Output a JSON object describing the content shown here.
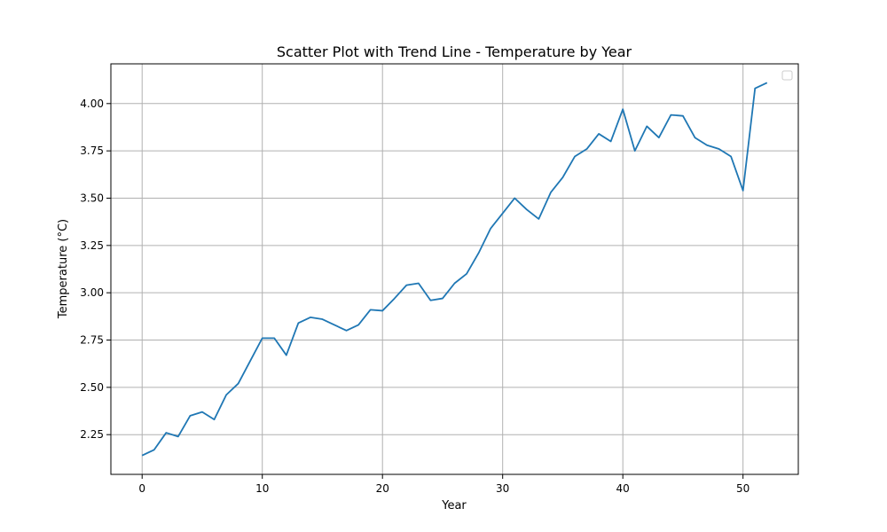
{
  "chart_data": {
    "type": "line",
    "title": "Scatter Plot with Trend Line - Temperature by Year",
    "xlabel": "Year",
    "ylabel": "Temperature (°C)",
    "xlim": [
      -2.6,
      54.6
    ],
    "ylim": [
      2.04,
      4.21
    ],
    "xticks": [
      0,
      10,
      20,
      30,
      40,
      50
    ],
    "yticks": [
      2.25,
      2.5,
      2.75,
      3.0,
      3.25,
      3.5,
      3.75,
      4.0
    ],
    "ytick_labels": [
      "2.25",
      "2.50",
      "2.75",
      "3.00",
      "3.25",
      "3.50",
      "3.75",
      "4.00"
    ],
    "grid": true,
    "legend": "top-right (empty)",
    "colors": {
      "line": "#1f77b4",
      "grid": "#b0b0b0"
    },
    "series": [
      {
        "x": [
          0,
          1,
          2,
          3,
          4,
          5,
          6,
          7,
          8,
          9,
          10,
          11,
          12,
          13,
          14,
          15,
          16,
          17,
          18,
          19,
          20,
          21,
          22,
          23,
          24,
          25,
          26,
          27,
          28,
          29,
          30,
          31,
          32,
          33,
          34,
          35,
          36,
          37,
          38,
          39,
          40,
          41,
          42,
          43,
          44,
          45,
          46,
          47,
          48,
          49,
          50,
          51,
          52
        ],
        "y": [
          2.14,
          2.17,
          2.26,
          2.24,
          2.35,
          2.37,
          2.33,
          2.46,
          2.52,
          2.64,
          2.76,
          2.76,
          2.67,
          2.84,
          2.87,
          2.86,
          2.83,
          2.8,
          2.83,
          2.91,
          2.905,
          2.97,
          3.04,
          3.05,
          2.96,
          2.97,
          3.05,
          3.1,
          3.21,
          3.34,
          3.42,
          3.5,
          3.44,
          3.39,
          3.53,
          3.61,
          3.72,
          3.76,
          3.84,
          3.8,
          3.97,
          3.75,
          3.88,
          3.82,
          3.94,
          3.935,
          3.82,
          3.78,
          3.76,
          3.72,
          3.54,
          4.08,
          4.11
        ]
      }
    ]
  }
}
